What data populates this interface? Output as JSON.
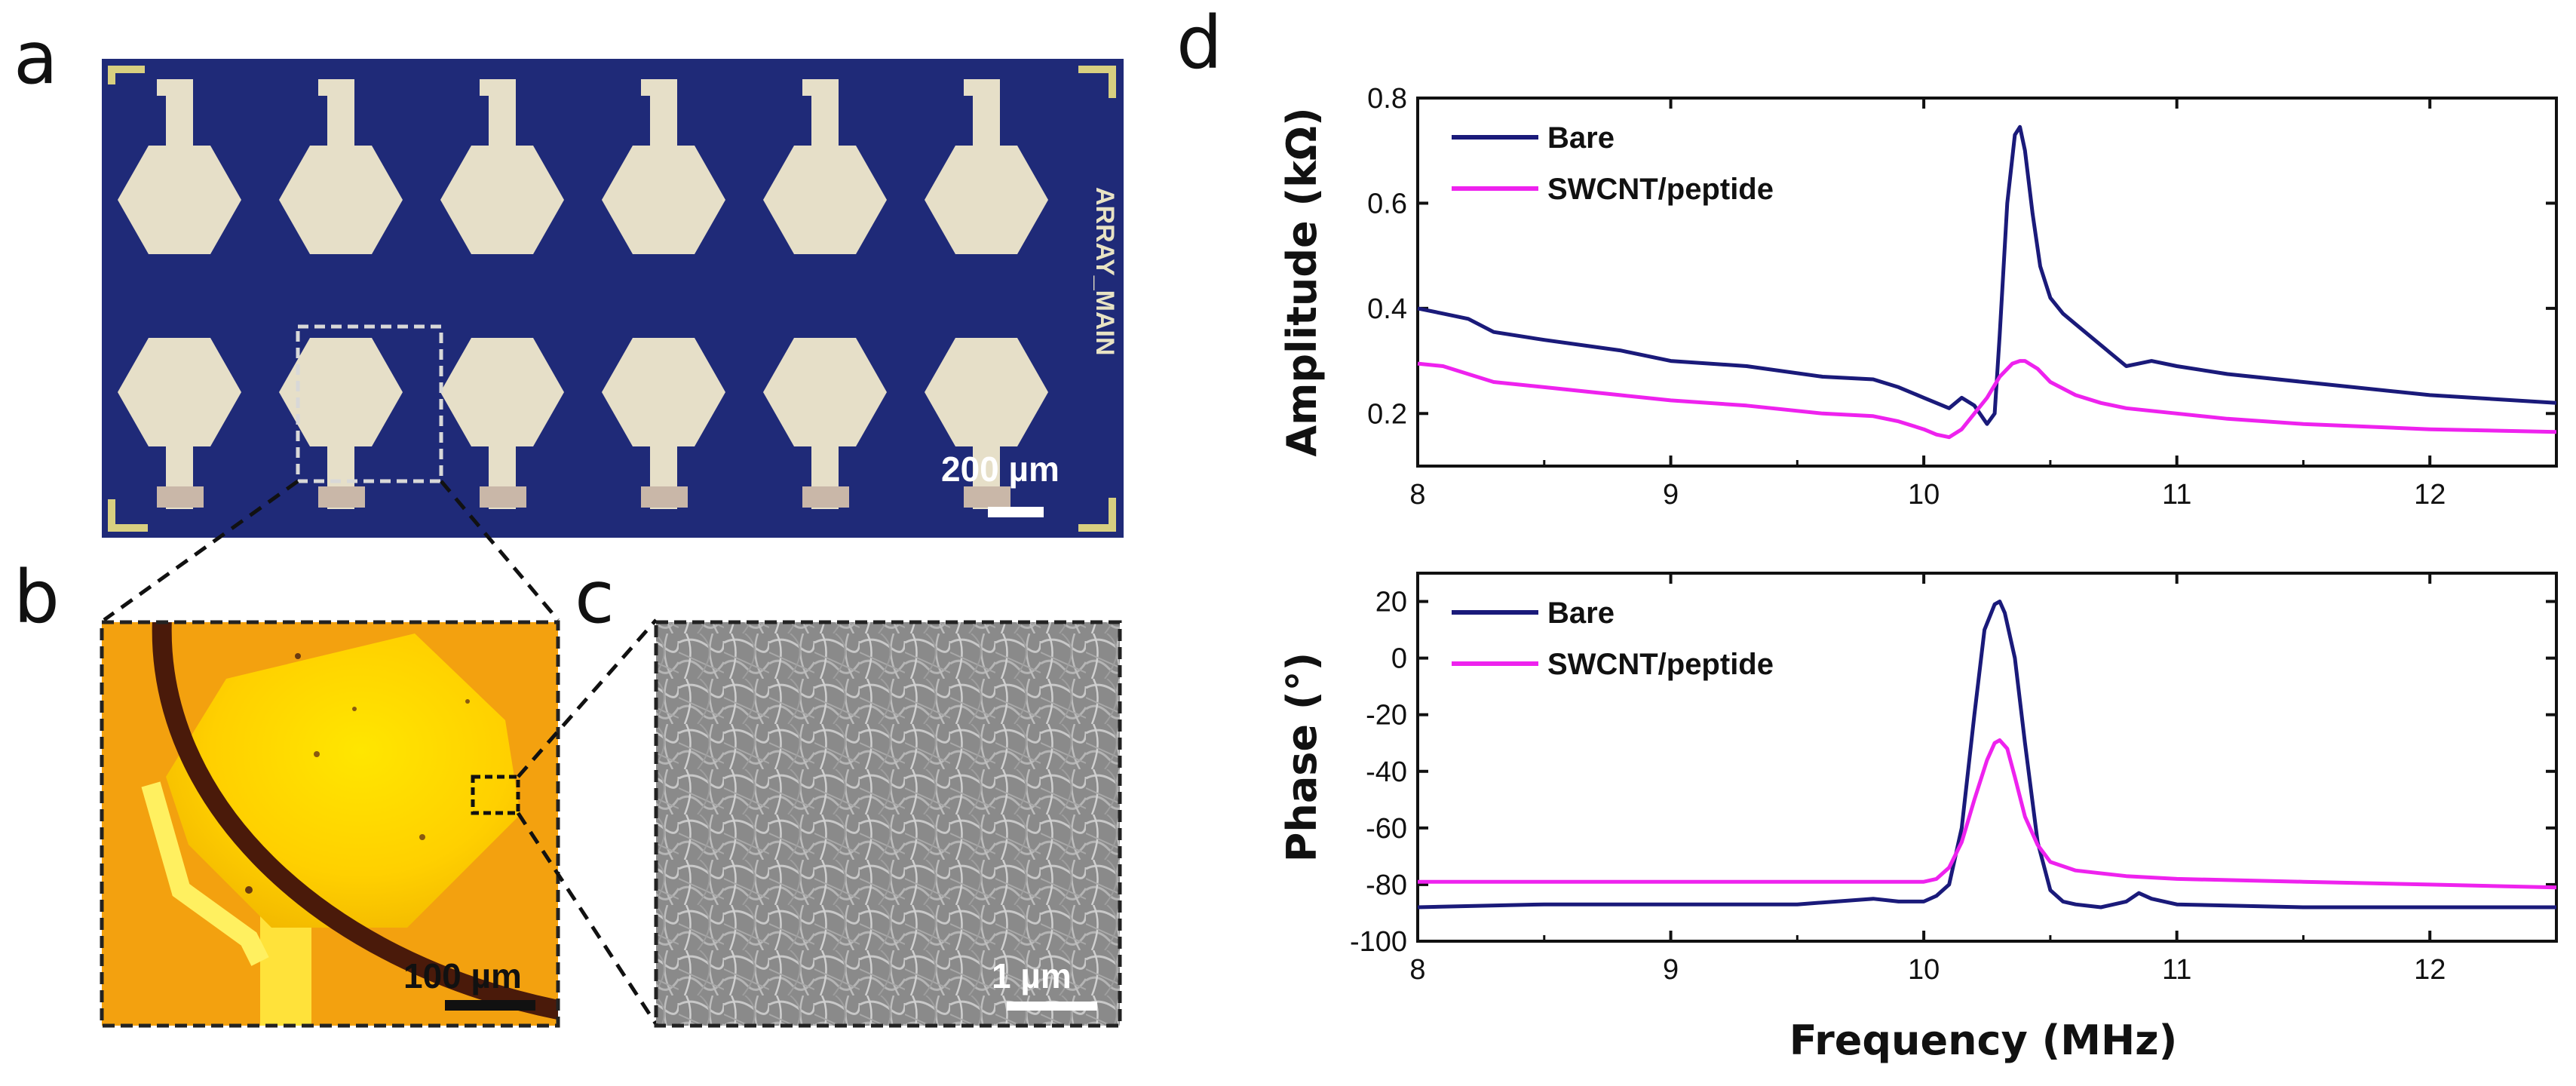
{
  "panels": {
    "a": {
      "letter": "a",
      "scale_bar": "200 µm",
      "chip_label": "ARRAY_MAIN"
    },
    "b": {
      "letter": "b",
      "scale_bar": "100 µm"
    },
    "c": {
      "letter": "c",
      "scale_bar": "1 µm"
    },
    "d": {
      "letter": "d"
    }
  },
  "colors": {
    "bare": "#1a1a7a",
    "swcnt": "#ee22ee",
    "chip_bg": "#1f2a78",
    "electrode": "#e6dfc8"
  },
  "chart_data": [
    {
      "type": "line",
      "name": "amplitude",
      "xlabel": "",
      "ylabel": "Amplitude (kΩ)",
      "xlim": [
        8,
        12.5
      ],
      "ylim": [
        0.1,
        0.8
      ],
      "xticks": [
        "8",
        "9",
        "10",
        "11",
        "12"
      ],
      "yticks": [
        "0.2",
        "0.4",
        "0.6",
        "0.8"
      ],
      "ytick_values": [
        0.2,
        0.4,
        0.6,
        0.8
      ],
      "legend": [
        "Bare",
        "SWCNT/peptide"
      ],
      "legend_position": "top-left",
      "series": [
        {
          "name": "Bare",
          "x": [
            8.0,
            8.1,
            8.2,
            8.3,
            8.5,
            8.8,
            9.0,
            9.3,
            9.6,
            9.8,
            9.9,
            10.0,
            10.1,
            10.15,
            10.2,
            10.25,
            10.28,
            10.3,
            10.33,
            10.36,
            10.38,
            10.4,
            10.43,
            10.46,
            10.5,
            10.55,
            10.6,
            10.7,
            10.8,
            10.85,
            10.9,
            11.0,
            11.2,
            11.5,
            12.0,
            12.5
          ],
          "y": [
            0.4,
            0.39,
            0.38,
            0.355,
            0.34,
            0.32,
            0.3,
            0.29,
            0.27,
            0.265,
            0.25,
            0.23,
            0.21,
            0.23,
            0.215,
            0.18,
            0.2,
            0.35,
            0.6,
            0.73,
            0.745,
            0.7,
            0.58,
            0.48,
            0.42,
            0.39,
            0.37,
            0.33,
            0.29,
            0.295,
            0.3,
            0.29,
            0.275,
            0.26,
            0.235,
            0.22
          ]
        },
        {
          "name": "SWCNT/peptide",
          "x": [
            8.0,
            8.1,
            8.2,
            8.3,
            8.5,
            8.8,
            9.0,
            9.3,
            9.6,
            9.8,
            9.9,
            10.0,
            10.05,
            10.1,
            10.15,
            10.2,
            10.25,
            10.3,
            10.35,
            10.38,
            10.4,
            10.45,
            10.5,
            10.6,
            10.7,
            10.8,
            11.0,
            11.2,
            11.5,
            12.0,
            12.5
          ],
          "y": [
            0.295,
            0.29,
            0.275,
            0.26,
            0.25,
            0.235,
            0.225,
            0.215,
            0.2,
            0.195,
            0.185,
            0.17,
            0.16,
            0.155,
            0.17,
            0.2,
            0.23,
            0.27,
            0.295,
            0.3,
            0.3,
            0.285,
            0.26,
            0.235,
            0.22,
            0.21,
            0.2,
            0.19,
            0.18,
            0.17,
            0.165
          ]
        }
      ]
    },
    {
      "type": "line",
      "name": "phase",
      "xlabel": "Frequency (MHz)",
      "ylabel": "Phase (°)",
      "xlim": [
        8,
        12.5
      ],
      "ylim": [
        -100,
        30
      ],
      "xticks": [
        "8",
        "9",
        "10",
        "11",
        "12"
      ],
      "yticks": [
        "20",
        "0",
        "-20",
        "-40",
        "-60",
        "-80",
        "-100"
      ],
      "ytick_values": [
        20,
        0,
        -20,
        -40,
        -60,
        -80,
        -100
      ],
      "legend": [
        "Bare",
        "SWCNT/peptide"
      ],
      "legend_position": "top-left",
      "series": [
        {
          "name": "Bare",
          "x": [
            8.0,
            8.5,
            9.0,
            9.5,
            9.8,
            9.9,
            10.0,
            10.05,
            10.1,
            10.15,
            10.2,
            10.24,
            10.28,
            10.3,
            10.32,
            10.36,
            10.4,
            10.45,
            10.5,
            10.55,
            10.6,
            10.7,
            10.8,
            10.85,
            10.9,
            11.0,
            11.5,
            12.0,
            12.5
          ],
          "y": [
            -88,
            -87,
            -87,
            -87,
            -85,
            -86,
            -86,
            -84,
            -80,
            -60,
            -20,
            10,
            19,
            20,
            16,
            0,
            -30,
            -65,
            -82,
            -86,
            -87,
            -88,
            -86,
            -83,
            -85,
            -87,
            -88,
            -88,
            -88
          ]
        },
        {
          "name": "SWCNT/peptide",
          "x": [
            8.0,
            8.5,
            9.0,
            9.5,
            9.8,
            10.0,
            10.05,
            10.1,
            10.15,
            10.2,
            10.25,
            10.28,
            10.3,
            10.33,
            10.36,
            10.4,
            10.45,
            10.5,
            10.6,
            10.8,
            11.0,
            11.5,
            12.0,
            12.5
          ],
          "y": [
            -79,
            -79,
            -79,
            -79,
            -79,
            -79,
            -78,
            -74,
            -65,
            -50,
            -36,
            -30,
            -29,
            -32,
            -42,
            -56,
            -66,
            -72,
            -75,
            -77,
            -78,
            -79,
            -80,
            -81
          ]
        }
      ]
    }
  ]
}
